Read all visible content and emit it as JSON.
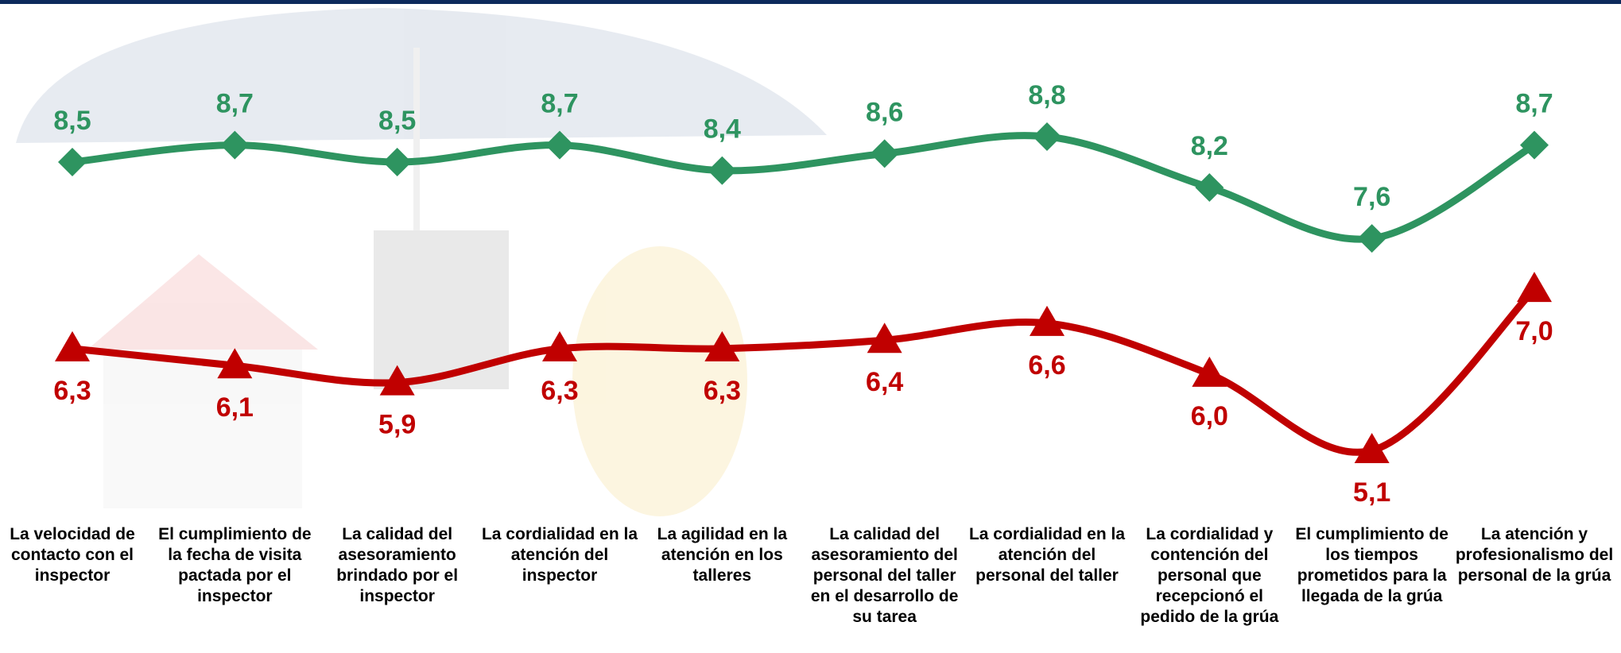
{
  "chart_data": {
    "type": "line",
    "categories": [
      "La velocidad de contacto con el inspector",
      "El cumplimiento de la fecha de visita pactada por el inspector",
      "La calidad del asesoramiento brindado por el inspector",
      "La cordialidad en la atención del inspector",
      "La agilidad en la atención en los talleres",
      "La calidad del asesoramiento del personal del taller en el desarrollo de su tarea",
      "La cordialidad en la atención del personal del taller",
      "La cordialidad y contención del personal que recepcionó el pedido de la grúa",
      "El cumplimiento de los tiempos prometidos para la llegada de la grúa",
      "La atención y profesionalismo del personal de la grúa"
    ],
    "series": [
      {
        "color": "#2e9460",
        "marker": "diamond",
        "values": [
          8.5,
          8.7,
          8.5,
          8.7,
          8.4,
          8.6,
          8.8,
          8.2,
          7.6,
          8.7
        ],
        "value_labels": [
          "8,5",
          "8,7",
          "8,5",
          "8,7",
          "8,4",
          "8,6",
          "8,8",
          "8,2",
          "7,6",
          "8,7"
        ]
      },
      {
        "color": "#c00000",
        "marker": "triangle",
        "values": [
          6.3,
          6.1,
          5.9,
          6.3,
          6.3,
          6.4,
          6.6,
          6.0,
          5.1,
          7.0
        ],
        "value_labels": [
          "6,3",
          "6,1",
          "5,9",
          "6,3",
          "6,3",
          "6,4",
          "6,6",
          "6,0",
          "5,1",
          "7,0"
        ]
      }
    ]
  }
}
